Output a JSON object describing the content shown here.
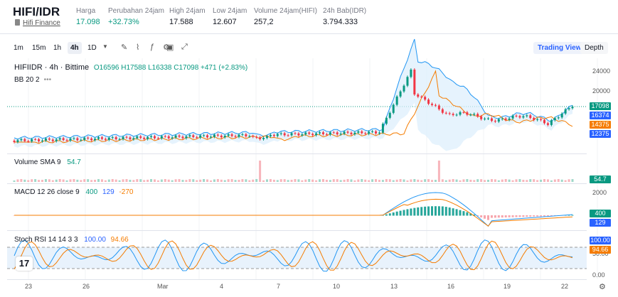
{
  "header": {
    "pair": "HIFI/IDR",
    "source": "Hifi Finance",
    "stats": [
      {
        "label": "Harga",
        "value": "17.098",
        "green": true
      },
      {
        "label": "Perubahan 24jam",
        "value": "+32.73%",
        "green": true
      },
      {
        "label": "High 24jam",
        "value": "17.588",
        "green": false
      },
      {
        "label": "Low 24jam",
        "value": "12.607",
        "green": false
      },
      {
        "label": "Volume 24jam(HIFI)",
        "value": "257,2",
        "green": false
      },
      {
        "label": "24h Bab(IDR)",
        "value": "3.794.333",
        "green": false
      }
    ]
  },
  "toolbar": {
    "timeframes": [
      "1m",
      "15m",
      "1h",
      "4h",
      "1D"
    ],
    "active_timeframe": "4h",
    "views": [
      "Trading View",
      "Depth"
    ],
    "active_view": "Trading View"
  },
  "main_pane": {
    "symbol_line": "HIFIIDR · 4h · Bittime",
    "ohlc": "O16596 H17588 L16338 C17098 +471 (+2.83%)",
    "bb_label": "BB 20 2",
    "y_ticks": [
      "24000",
      "20000"
    ],
    "price_tags": [
      {
        "value": "17098",
        "color": "#089981"
      },
      {
        "value": "16374",
        "color": "#2962ff"
      },
      {
        "value": "14375",
        "color": "#f57c00"
      },
      {
        "value": "12375",
        "color": "#2962ff"
      }
    ]
  },
  "volume_pane": {
    "label": "Volume SMA 9",
    "value": "54.7",
    "tag": "54.7",
    "tag_color": "#089981"
  },
  "macd_pane": {
    "label": "MACD 12 26 close 9",
    "v1": "400",
    "v2": "129",
    "v3": "-270",
    "y_ticks": [
      "2000",
      "0"
    ],
    "tags": [
      {
        "value": "400",
        "color": "#089981"
      },
      {
        "value": "129",
        "color": "#2962ff"
      }
    ]
  },
  "stoch_pane": {
    "label": "Stoch RSI 14 14 3 3",
    "v1": "100.00",
    "v2": "94.66",
    "y_ticks": [
      "50.00",
      "0.00"
    ],
    "tags": [
      {
        "value": "100.00",
        "color": "#2962ff"
      },
      {
        "value": "94.66",
        "color": "#f57c00"
      }
    ]
  },
  "x_axis": [
    "23",
    "26",
    "Mar",
    "4",
    "7",
    "10",
    "13",
    "16",
    "19",
    "22"
  ]
}
